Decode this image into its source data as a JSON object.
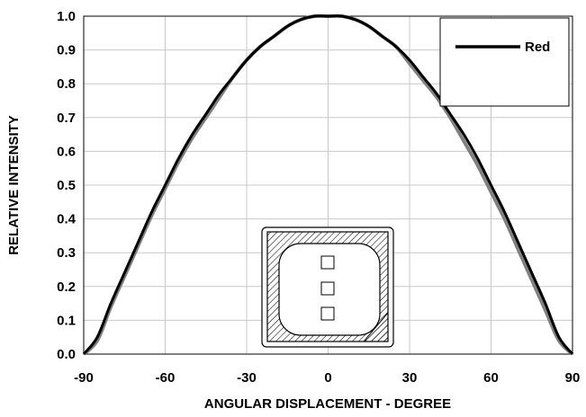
{
  "chart_data": {
    "type": "line",
    "title": "",
    "xlabel": "ANGULAR DISPLACEMENT - DEGREE",
    "ylabel": "RELATIVE INTENSITY",
    "xlim": [
      -90,
      90
    ],
    "ylim": [
      0,
      1.0
    ],
    "x_ticks": [
      "-90",
      "-60",
      "-30",
      "0",
      "30",
      "60",
      "90"
    ],
    "y_ticks": [
      "0.0",
      "0.1",
      "0.2",
      "0.3",
      "0.4",
      "0.5",
      "0.6",
      "0.7",
      "0.8",
      "0.9",
      "1.0"
    ],
    "grid": true,
    "legend": {
      "placement": "top-right",
      "entries": [
        "Red"
      ]
    },
    "series": [
      {
        "name": "Red",
        "color": "#000000",
        "x": [
          -90,
          -85,
          -80,
          -75,
          -70,
          -65,
          -60,
          -55,
          -50,
          -45,
          -40,
          -35,
          -30,
          -25,
          -20,
          -15,
          -10,
          -5,
          0,
          5,
          10,
          15,
          20,
          25,
          30,
          35,
          40,
          45,
          50,
          55,
          60,
          65,
          70,
          75,
          80,
          85,
          90
        ],
        "y": [
          0.0,
          0.05,
          0.15,
          0.24,
          0.33,
          0.42,
          0.5,
          0.58,
          0.65,
          0.71,
          0.77,
          0.82,
          0.87,
          0.91,
          0.94,
          0.97,
          0.99,
          1.0,
          1.0,
          1.0,
          0.99,
          0.97,
          0.94,
          0.91,
          0.87,
          0.82,
          0.77,
          0.71,
          0.65,
          0.58,
          0.5,
          0.42,
          0.33,
          0.24,
          0.15,
          0.05,
          0.0
        ]
      },
      {
        "color": "#808080",
        "x": [
          -90,
          -85,
          -80,
          -75,
          -70,
          -65,
          -60,
          -55,
          -50,
          -45,
          -40,
          -35,
          -30,
          -25,
          -20,
          -15,
          -10,
          -5,
          0,
          5,
          10,
          15,
          20,
          25,
          30,
          35,
          40,
          45,
          50,
          55,
          60,
          65,
          70,
          75,
          80,
          85,
          90
        ],
        "y": [
          0.0,
          0.04,
          0.14,
          0.23,
          0.32,
          0.41,
          0.49,
          0.57,
          0.64,
          0.7,
          0.76,
          0.82,
          0.87,
          0.91,
          0.94,
          0.97,
          0.99,
          1.0,
          1.0,
          1.0,
          0.99,
          0.97,
          0.94,
          0.91,
          0.86,
          0.81,
          0.76,
          0.7,
          0.63,
          0.56,
          0.48,
          0.4,
          0.31,
          0.22,
          0.13,
          0.04,
          0.0
        ]
      }
    ]
  }
}
